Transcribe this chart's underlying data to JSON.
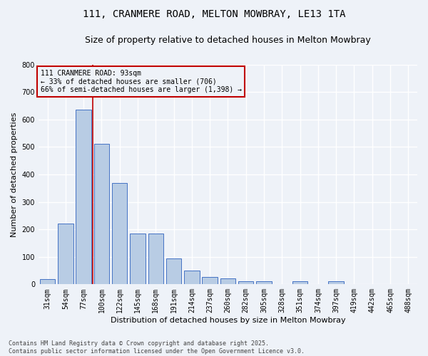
{
  "title1": "111, CRANMERE ROAD, MELTON MOWBRAY, LE13 1TA",
  "title2": "Size of property relative to detached houses in Melton Mowbray",
  "xlabel": "Distribution of detached houses by size in Melton Mowbray",
  "ylabel": "Number of detached properties",
  "categories": [
    "31sqm",
    "54sqm",
    "77sqm",
    "100sqm",
    "122sqm",
    "145sqm",
    "168sqm",
    "191sqm",
    "214sqm",
    "237sqm",
    "260sqm",
    "282sqm",
    "305sqm",
    "328sqm",
    "351sqm",
    "374sqm",
    "397sqm",
    "419sqm",
    "442sqm",
    "465sqm",
    "488sqm"
  ],
  "values": [
    18,
    220,
    635,
    510,
    370,
    185,
    185,
    95,
    50,
    27,
    22,
    10,
    10,
    0,
    12,
    0,
    12,
    0,
    0,
    0,
    0
  ],
  "bar_color": "#b8cce4",
  "bar_edge_color": "#4472c4",
  "vline_pos": 2.5,
  "vline_color": "#c00000",
  "annotation_text": "111 CRANMERE ROAD: 93sqm\n← 33% of detached houses are smaller (706)\n66% of semi-detached houses are larger (1,398) →",
  "annotation_box_color": "#c00000",
  "ylim": [
    0,
    800
  ],
  "yticks": [
    0,
    100,
    200,
    300,
    400,
    500,
    600,
    700,
    800
  ],
  "footer": "Contains HM Land Registry data © Crown copyright and database right 2025.\nContains public sector information licensed under the Open Government Licence v3.0.",
  "bg_color": "#eef2f8",
  "grid_color": "#ffffff",
  "title_fontsize": 10,
  "subtitle_fontsize": 9,
  "axis_label_fontsize": 8,
  "tick_fontsize": 7,
  "footer_fontsize": 6,
  "ann_fontsize": 7
}
